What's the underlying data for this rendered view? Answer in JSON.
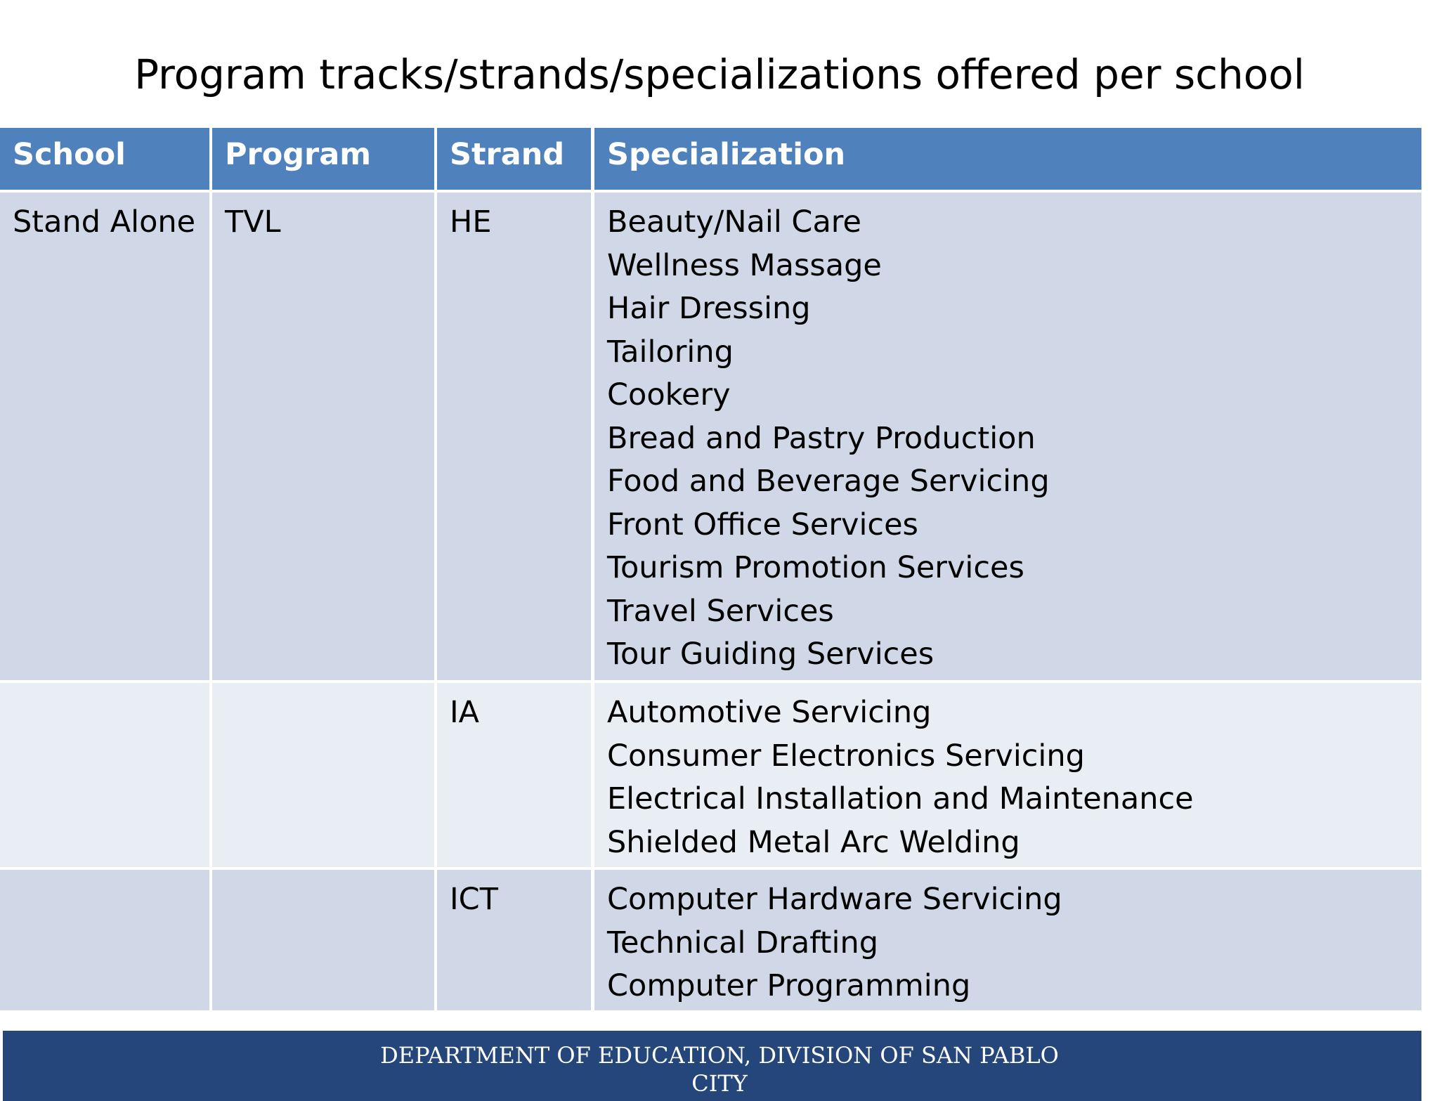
{
  "title": "Program tracks/strands/specializations offered per school",
  "table": {
    "header": [
      "School",
      "Program",
      "Strand",
      "Specialization"
    ],
    "rows": [
      {
        "school": "Stand Alone",
        "program": "TVL",
        "strand": "HE",
        "specializations": [
          "Beauty/Nail Care",
          "Wellness Massage",
          "Hair Dressing",
          "Tailoring",
          "Cookery",
          "Bread and Pastry Production",
          "Food and Beverage Servicing",
          "Front Office Services",
          "Tourism Promotion Services",
          "Travel Services",
          "Tour Guiding Services"
        ]
      },
      {
        "strand": "IA",
        "specializations": [
          "Automotive Servicing",
          "Consumer Electronics Servicing",
          "Electrical Installation and Maintenance",
          "Shielded Metal Arc Welding"
        ]
      },
      {
        "strand": "ICT",
        "specializations": [
          "Computer Hardware Servicing",
          "Technical Drafting",
          "Computer Programming"
        ]
      }
    ]
  },
  "footer": "DEPARTMENT OF EDUCATION, DIVISION OF SAN PABLO CITY"
}
